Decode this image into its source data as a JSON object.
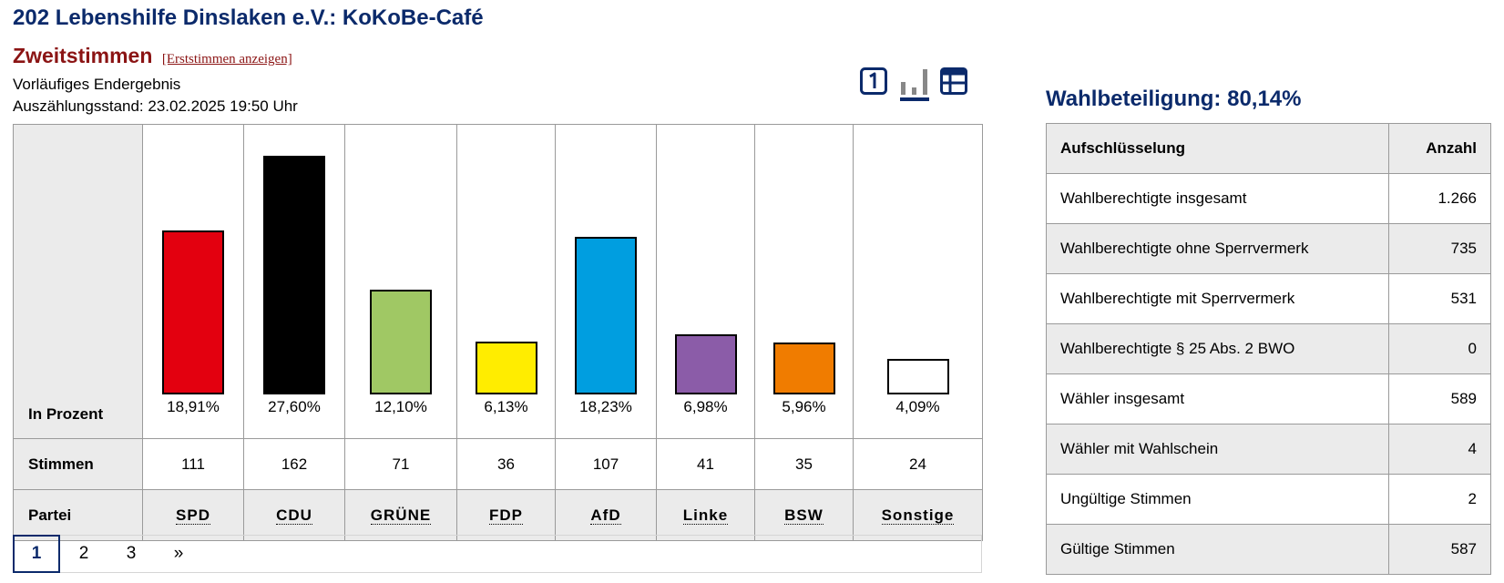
{
  "header": {
    "title": "202 Lebenshilfe Dinslaken e.V.: KoKoBe-Café",
    "vote_type": "Zweitstimmen",
    "toggle_link": "[Erststimmen anzeigen]",
    "status_line": "Vorläufiges Endergebnis",
    "count_status": "Auszählungsstand: 23.02.2025 19:50 Uhr"
  },
  "view_icons": [
    "first-vote-icon",
    "bar-chart-icon",
    "table-icon"
  ],
  "results": {
    "row_labels": {
      "percent": "In Prozent",
      "votes": "Stimmen",
      "party": "Partei"
    },
    "parties": [
      {
        "name": "SPD",
        "percent_label": "18,91%",
        "votes": "111",
        "color": "#e3000f"
      },
      {
        "name": "CDU",
        "percent_label": "27,60%",
        "votes": "162",
        "color": "#000000"
      },
      {
        "name": "GRÜNE",
        "percent_label": "12,10%",
        "votes": "71",
        "color": "#a0c864"
      },
      {
        "name": "FDP",
        "percent_label": "6,13%",
        "votes": "36",
        "color": "#ffed00"
      },
      {
        "name": "AfD",
        "percent_label": "18,23%",
        "votes": "107",
        "color": "#009ee0"
      },
      {
        "name": "Linke",
        "percent_label": "6,98%",
        "votes": "41",
        "color": "#8b5ca8"
      },
      {
        "name": "BSW",
        "percent_label": "5,96%",
        "votes": "35",
        "color": "#f07c00"
      },
      {
        "name": "Sonstige",
        "percent_label": "4,09%",
        "votes": "24",
        "color": "#ffffff"
      }
    ]
  },
  "chart_data": {
    "type": "bar",
    "categories": [
      "SPD",
      "CDU",
      "GRÜNE",
      "FDP",
      "AfD",
      "Linke",
      "BSW",
      "Sonstige"
    ],
    "values": [
      18.91,
      27.6,
      12.1,
      6.13,
      18.23,
      6.98,
      5.96,
      4.09
    ],
    "ylabel": "In Prozent"
  },
  "pagination": {
    "pages": [
      "1",
      "2",
      "3"
    ],
    "next": "»",
    "current": "1"
  },
  "turnout": {
    "label": "Wahlbeteiligung: 80,14%"
  },
  "stats": {
    "headers": [
      "Aufschlüsselung",
      "Anzahl"
    ],
    "rows": [
      {
        "label": "Wahlberechtigte insgesamt",
        "value": "1.266"
      },
      {
        "label": "Wahlberechtigte ohne Sperrvermerk",
        "value": "735"
      },
      {
        "label": "Wahlberechtigte mit Sperrvermerk",
        "value": "531"
      },
      {
        "label": "Wahlberechtigte § 25 Abs. 2 BWO",
        "value": "0"
      },
      {
        "label": "Wähler insgesamt",
        "value": "589"
      },
      {
        "label": "Wähler mit Wahlschein",
        "value": "4"
      },
      {
        "label": "Ungültige Stimmen",
        "value": "2"
      },
      {
        "label": "Gültige Stimmen",
        "value": "587"
      }
    ]
  }
}
